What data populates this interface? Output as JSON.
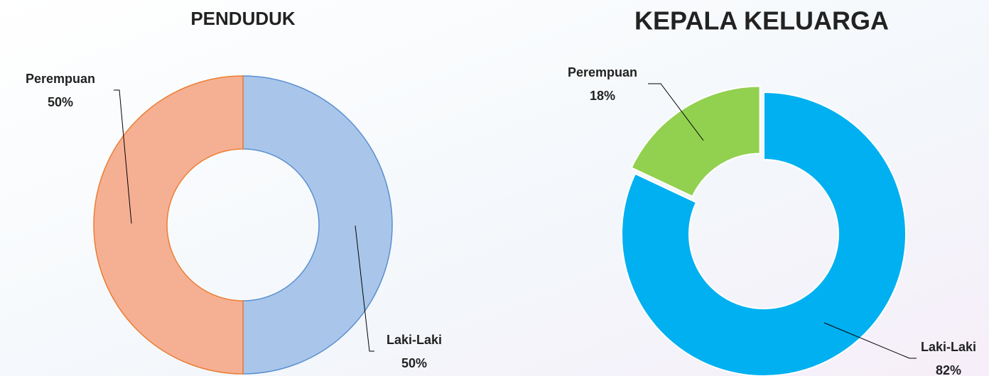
{
  "chart_data": [
    {
      "type": "donut",
      "title": "PENDUDUK",
      "categories": [
        "Laki-Laki",
        "Perempuan"
      ],
      "values": [
        50,
        50
      ],
      "value_labels": [
        "50%",
        "50%"
      ],
      "colors": [
        "#a9c6ea",
        "#f5b094"
      ],
      "stroke_colors": [
        "#5b8fd0",
        "#ed7d31"
      ]
    },
    {
      "type": "donut",
      "title": "KEPALA KELUARGA",
      "categories": [
        "Laki-Laki",
        "Perempuan"
      ],
      "values": [
        82,
        18
      ],
      "value_labels": [
        "82%",
        "18%"
      ],
      "colors": [
        "#00b0f0",
        "#92d050"
      ],
      "stroke_colors": [
        "#ffffff",
        "#ffffff"
      ]
    }
  ]
}
